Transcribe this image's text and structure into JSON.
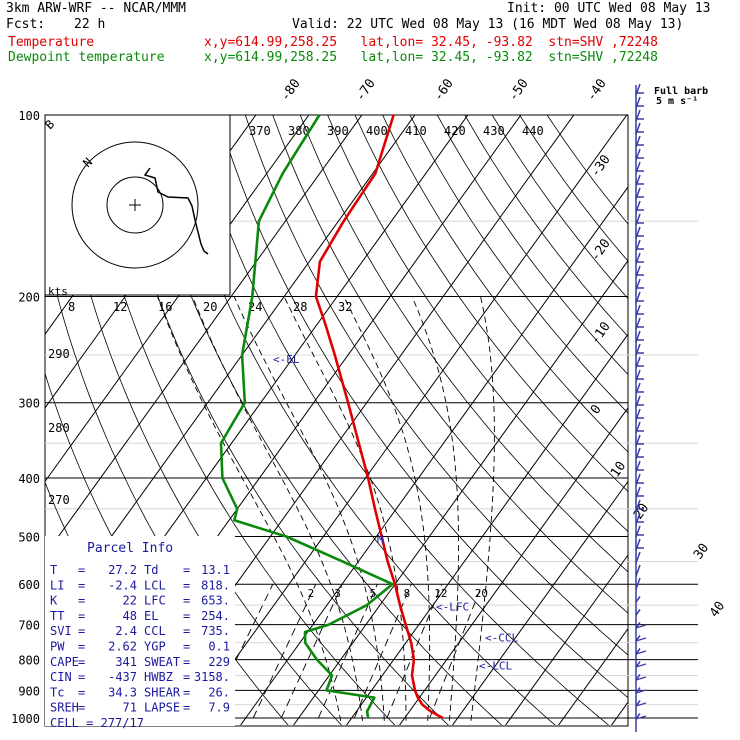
{
  "header": {
    "model": "3km ARW-WRF -- NCAR/MMM",
    "init": "Init: 00 UTC Wed 08 May 13",
    "fcst_label": "Fcst:",
    "fcst_value": "22 h",
    "valid": "Valid: 22 UTC Wed 08 May 13 (16 MDT Wed 08 May 13)",
    "temp_label": "Temperature",
    "temp_info": "x,y=614.99,258.25   lat,lon= 32.45, -93.82  stn=SHV ,72248",
    "dew_label": "Dewpoint temperature",
    "dew_info": "x,y=614.99,258.25   lat,lon= 32.45, -93.82  stn=SHV ,72248"
  },
  "colors": {
    "temperature": "#e00000",
    "dewpoint": "#0a8a0a",
    "grid": "#000000",
    "annotation": "#1a1aa0",
    "barbs": "#3a3aa8"
  },
  "chart_data": {
    "type": "line",
    "title": "",
    "y_axis": "pressure (hPa), log scale",
    "pressure_levels": [
      100,
      200,
      300,
      400,
      500,
      600,
      700,
      800,
      900,
      1000
    ],
    "skewed_temperature_labels": [
      -80,
      -70,
      -60,
      -50,
      -40,
      -30,
      -20,
      -10,
      0,
      10,
      20,
      30,
      40
    ],
    "theta_labels": [
      370,
      380,
      390,
      400,
      410,
      420,
      430,
      440
    ],
    "mixing_ratio_labels": [
      2,
      3,
      5,
      8,
      12,
      20
    ],
    "wind_speed_labels": [
      8,
      12,
      16,
      20,
      24,
      28,
      32
    ],
    "wind_speed_unit": "kts",
    "left_margin_labels": [
      290,
      280,
      270
    ],
    "series": [
      {
        "name": "Temperature",
        "points": [
          {
            "p": 1000,
            "t": 27.2
          },
          {
            "p": 975,
            "t": 24.0
          },
          {
            "p": 950,
            "t": 21.5
          },
          {
            "p": 925,
            "t": 19.7
          },
          {
            "p": 900,
            "t": 18.2
          },
          {
            "p": 850,
            "t": 15.6
          },
          {
            "p": 800,
            "t": 13.8
          },
          {
            "p": 750,
            "t": 11.0
          },
          {
            "p": 700,
            "t": 7.5
          },
          {
            "p": 650,
            "t": 3.8
          },
          {
            "p": 600,
            "t": 0.0
          },
          {
            "p": 550,
            "t": -4.5
          },
          {
            "p": 500,
            "t": -9.0
          },
          {
            "p": 450,
            "t": -14.0
          },
          {
            "p": 400,
            "t": -19.5
          },
          {
            "p": 350,
            "t": -26.0
          },
          {
            "p": 300,
            "t": -33.5
          },
          {
            "p": 250,
            "t": -42.5
          },
          {
            "p": 220,
            "t": -49.0
          },
          {
            "p": 200,
            "t": -54.0
          },
          {
            "p": 175,
            "t": -58.0
          },
          {
            "p": 150,
            "t": -59.0
          },
          {
            "p": 125,
            "t": -59.5
          },
          {
            "p": 100,
            "t": -64.0
          }
        ]
      },
      {
        "name": "Dewpoint temperature",
        "points": [
          {
            "p": 1000,
            "t": 13.1
          },
          {
            "p": 975,
            "t": 12.0
          },
          {
            "p": 925,
            "t": 11.5
          },
          {
            "p": 900,
            "t": 1.5
          },
          {
            "p": 850,
            "t": 0.5
          },
          {
            "p": 800,
            "t": -4.5
          },
          {
            "p": 750,
            "t": -9.0
          },
          {
            "p": 720,
            "t": -10.5
          },
          {
            "p": 700,
            "t": -7.0
          },
          {
            "p": 650,
            "t": -2.5
          },
          {
            "p": 600,
            "t": -0.5
          },
          {
            "p": 550,
            "t": -13.0
          },
          {
            "p": 500,
            "t": -27.0
          },
          {
            "p": 470,
            "t": -39.0
          },
          {
            "p": 450,
            "t": -40.0
          },
          {
            "p": 400,
            "t": -47.0
          },
          {
            "p": 350,
            "t": -52.0
          },
          {
            "p": 300,
            "t": -53.0
          },
          {
            "p": 250,
            "t": -60.0
          },
          {
            "p": 200,
            "t": -66.0
          },
          {
            "p": 150,
            "t": -75.0
          },
          {
            "p": 125,
            "t": -77.0
          },
          {
            "p": 100,
            "t": -78.0
          }
        ]
      }
    ],
    "annotations": [
      {
        "text": "<-EL",
        "p": 254
      },
      {
        "text": "<-LFC",
        "p": 653
      },
      {
        "text": "<-CCL",
        "p": 735
      },
      {
        "text": "<-LCL",
        "p": 818
      },
      {
        "text": "M",
        "p": 505
      }
    ],
    "full_barb_label": "Full barb",
    "full_barb_value": "5 m s⁻¹",
    "hodograph_label": "N",
    "hodograph_corner": "B",
    "grid": true
  },
  "parcel_info": {
    "title": "Parcel Info",
    "rows": [
      {
        "k1": "T",
        "v1": "27.2",
        "k2": "Td",
        "v2": "13.1"
      },
      {
        "k1": "LI",
        "v1": "-2.4",
        "k2": "LCL",
        "v2": "818."
      },
      {
        "k1": "K",
        "v1": "22",
        "k2": "LFC",
        "v2": "653."
      },
      {
        "k1": "TT",
        "v1": "48",
        "k2": "EL",
        "v2": "254."
      },
      {
        "k1": "SVI",
        "v1": "2.4",
        "k2": "CCL",
        "v2": "735."
      },
      {
        "k1": "PW",
        "v1": "2.62",
        "k2": "YGP",
        "v2": "0.1"
      },
      {
        "k1": "CAPE",
        "v1": "341",
        "k2": "SWEAT",
        "v2": "229"
      },
      {
        "k1": "CIN",
        "v1": "-437",
        "k2": "HWBZ",
        "v2": "3158."
      },
      {
        "k1": "Tc",
        "v1": "34.3",
        "k2": "SHEAR",
        "v2": "26."
      },
      {
        "k1": "SREH",
        "v1": "71",
        "k2": "LAPSE",
        "v2": "7.9"
      }
    ],
    "cell": "CELL = 277/17"
  }
}
